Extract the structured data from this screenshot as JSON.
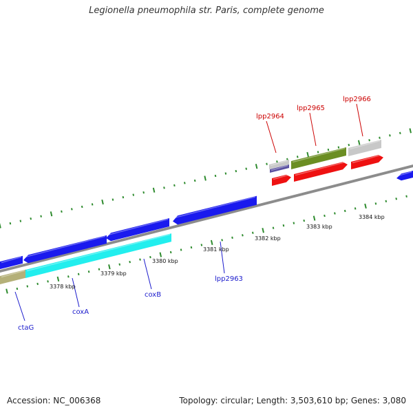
{
  "title": "Legionella pneumophila str. Paris, complete genome",
  "footer": {
    "accession": "Accession: NC_006368",
    "summary": "Topology: circular; Length: 3,503,610 bp; Genes: 3,080"
  },
  "colors": {
    "backbone": "#8c8c8c",
    "tick": "#2e8b2e",
    "forward_label": "#cc0000",
    "reverse_label": "#1a1acc"
  },
  "scale_labels": [
    "3378 kbp",
    "3379 kbp",
    "3380 kbp",
    "3381 kbp",
    "3382 kbp",
    "3383 kbp",
    "3384 kbp"
  ],
  "gene_labels": [
    {
      "text": "lpp2964",
      "strand": "forward"
    },
    {
      "text": "lpp2965",
      "strand": "forward"
    },
    {
      "text": "lpp2966",
      "strand": "forward"
    },
    {
      "text": "ctaG",
      "strand": "reverse"
    },
    {
      "text": "coxA",
      "strand": "reverse"
    },
    {
      "text": "coxB",
      "strand": "reverse"
    },
    {
      "text": "lpp2963",
      "strand": "reverse"
    }
  ],
  "features": [
    {
      "name": "forward-red-arrow-1",
      "color": "#ee1111"
    },
    {
      "name": "forward-red-arrow-2",
      "color": "#ee1111"
    },
    {
      "name": "forward-red-arrow-3",
      "color": "#ee1111"
    },
    {
      "name": "forward-blue-arrow",
      "color": "#1a1aee"
    },
    {
      "name": "forward-lightgray-bar-1",
      "color": "#c8c8c8"
    },
    {
      "name": "forward-purple-bar",
      "color": "#5a50a0"
    },
    {
      "name": "forward-olive-bar",
      "color": "#6b8e23"
    },
    {
      "name": "forward-lightgray-bar-2",
      "color": "#c8c8c8"
    },
    {
      "name": "reverse-blue-arrow-1",
      "color": "#1a1aee"
    },
    {
      "name": "reverse-blue-arrow-2",
      "color": "#1a1aee"
    },
    {
      "name": "reverse-blue-arrow-3",
      "color": "#1a1aee"
    },
    {
      "name": "reverse-blue-arrow-4",
      "color": "#1a1aee"
    },
    {
      "name": "reverse-khaki-bar",
      "color": "#b4b078"
    },
    {
      "name": "reverse-cyan-bar",
      "color": "#22eeee"
    }
  ]
}
